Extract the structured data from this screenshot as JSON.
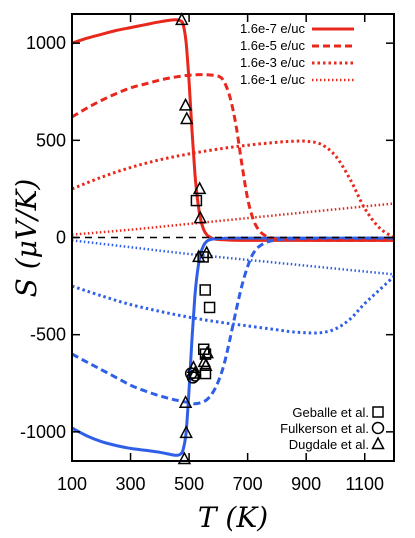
{
  "chart_data": {
    "type": "line",
    "title": "",
    "xlabel": "T (K)",
    "ylabel": "S (μV/K)",
    "xlim": [
      100,
      1200
    ],
    "ylim": [
      -1150,
      1150
    ],
    "x_ticks": [
      100,
      300,
      500,
      700,
      900,
      1100
    ],
    "y_ticks": [
      -1000,
      -500,
      0,
      500,
      1000
    ],
    "grid": false,
    "colors": {
      "p_type": "#e8281c",
      "n_type": "#2f5fe6",
      "zero_line": "#000000",
      "markers": "#000000"
    },
    "legend_lines": {
      "placement": "top-right",
      "entries": [
        {
          "label": "1.6e-7 e/uc",
          "style": "solid"
        },
        {
          "label": "1.6e-5 e/uc",
          "style": "dashed"
        },
        {
          "label": "1.6e-3 e/uc",
          "style": "dotted"
        },
        {
          "label": "1.6e-1 e/uc",
          "style": "fine-dotted"
        }
      ]
    },
    "legend_markers": {
      "placement": "bottom-right",
      "entries": [
        {
          "label": "Geballe et al.",
          "marker": "square"
        },
        {
          "label": "Fulkerson et al.",
          "marker": "circle"
        },
        {
          "label": "Dugdale et al.",
          "marker": "triangle"
        }
      ]
    },
    "series": [
      {
        "legend": "1.6e-7 e/uc",
        "style": "solid",
        "color": "p_type",
        "x": [
          100,
          150,
          200,
          250,
          300,
          350,
          400,
          450,
          470,
          480,
          490,
          500,
          510,
          520,
          530,
          540,
          550,
          560,
          570,
          580,
          590,
          600,
          620,
          650,
          700,
          800,
          900,
          1000,
          1100,
          1200
        ],
        "y": [
          1000,
          1025,
          1045,
          1065,
          1080,
          1095,
          1110,
          1120,
          1115,
          1095,
          1000,
          800,
          550,
          330,
          180,
          90,
          40,
          15,
          3,
          -5,
          -8,
          -10,
          -12,
          -14,
          -15,
          -15,
          -15,
          -15,
          -15,
          -15
        ]
      },
      {
        "legend": "1.6e-7 e/uc",
        "style": "solid",
        "color": "n_type",
        "x": [
          100,
          150,
          200,
          250,
          300,
          350,
          400,
          450,
          470,
          480,
          490,
          500,
          510,
          520,
          530,
          540,
          550,
          560,
          570,
          580,
          590,
          600,
          620,
          650,
          700,
          800,
          900,
          1000,
          1100,
          1200
        ],
        "y": [
          -980,
          -1020,
          -1050,
          -1070,
          -1085,
          -1095,
          -1105,
          -1120,
          -1115,
          -1090,
          -1000,
          -780,
          -520,
          -300,
          -160,
          -80,
          -40,
          -20,
          -12,
          -8,
          -6,
          -5,
          -4,
          -3,
          -3,
          -3,
          -3,
          -3,
          -3,
          -3
        ]
      },
      {
        "legend": "1.6e-5 e/uc",
        "style": "dashed",
        "color": "p_type",
        "x": [
          100,
          150,
          200,
          250,
          300,
          350,
          400,
          450,
          500,
          550,
          600,
          620,
          640,
          660,
          680,
          700,
          720,
          740,
          760,
          780,
          800,
          850,
          900,
          1000,
          1100,
          1200
        ],
        "y": [
          620,
          665,
          705,
          740,
          770,
          790,
          810,
          825,
          835,
          838,
          830,
          800,
          720,
          580,
          380,
          200,
          90,
          35,
          10,
          -2,
          -8,
          -12,
          -14,
          -15,
          -15,
          -15
        ]
      },
      {
        "legend": "1.6e-5 e/uc",
        "style": "dashed",
        "color": "n_type",
        "x": [
          100,
          150,
          200,
          250,
          300,
          350,
          400,
          450,
          500,
          520,
          540,
          560,
          580,
          600,
          620,
          640,
          660,
          680,
          700,
          720,
          750,
          800,
          900,
          1000,
          1100,
          1200
        ],
        "y": [
          -600,
          -640,
          -680,
          -720,
          -760,
          -790,
          -815,
          -835,
          -850,
          -855,
          -850,
          -835,
          -800,
          -740,
          -650,
          -520,
          -380,
          -250,
          -150,
          -80,
          -35,
          -12,
          -5,
          -3,
          -3,
          -3
        ]
      },
      {
        "legend": "1.6e-3 e/uc",
        "style": "dotted",
        "color": "p_type",
        "x": [
          100,
          200,
          300,
          400,
          500,
          600,
          700,
          800,
          850,
          900,
          950,
          1000,
          1050,
          1100,
          1150,
          1200
        ],
        "y": [
          250,
          310,
          360,
          400,
          430,
          455,
          475,
          490,
          495,
          495,
          480,
          420,
          300,
          150,
          50,
          0
        ]
      },
      {
        "legend": "1.6e-3 e/uc",
        "style": "dotted",
        "color": "n_type",
        "x": [
          100,
          200,
          300,
          400,
          500,
          600,
          700,
          800,
          850,
          900,
          950,
          1000,
          1050,
          1100,
          1150,
          1200
        ],
        "y": [
          -250,
          -300,
          -345,
          -380,
          -410,
          -435,
          -455,
          -475,
          -485,
          -490,
          -490,
          -470,
          -420,
          -340,
          -270,
          -200
        ]
      },
      {
        "legend": "1.6e-1 e/uc",
        "style": "fine-dotted",
        "color": "p_type",
        "x": [
          100,
          300,
          500,
          700,
          900,
          1100,
          1200
        ],
        "y": [
          15,
          40,
          70,
          100,
          130,
          160,
          175
        ]
      },
      {
        "legend": "1.6e-1 e/uc",
        "style": "fine-dotted",
        "color": "n_type",
        "x": [
          100,
          300,
          500,
          700,
          900,
          1100,
          1200
        ],
        "y": [
          -15,
          -50,
          -85,
          -115,
          -145,
          -175,
          -190
        ]
      }
    ],
    "experimental": [
      {
        "name": "Geballe et al.",
        "marker": "square",
        "points": [
          [
            525,
            190
          ],
          [
            548,
            -100
          ],
          [
            555,
            -270
          ],
          [
            570,
            -360
          ],
          [
            550,
            -575
          ],
          [
            556,
            -600
          ],
          [
            556,
            -700
          ]
        ]
      },
      {
        "name": "Fulkerson et al.",
        "marker": "circle",
        "points": [
          [
            507,
            -700
          ],
          [
            513,
            -720
          ],
          [
            520,
            -710
          ]
        ]
      },
      {
        "name": "Dugdale et al.",
        "marker": "triangle",
        "points": [
          [
            475,
            1120
          ],
          [
            488,
            680
          ],
          [
            492,
            610
          ],
          [
            536,
            250
          ],
          [
            538,
            100
          ],
          [
            533,
            -100
          ],
          [
            560,
            -80
          ],
          [
            562,
            -595
          ],
          [
            552,
            -640
          ],
          [
            557,
            -660
          ],
          [
            520,
            -700
          ],
          [
            515,
            -670
          ],
          [
            488,
            -850
          ],
          [
            490,
            -1005
          ],
          [
            484,
            -1140
          ]
        ]
      }
    ]
  }
}
